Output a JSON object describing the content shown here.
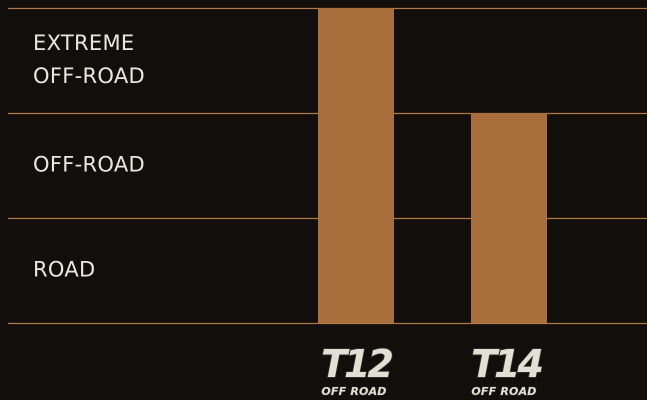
{
  "colors": {
    "background": "#120e0b",
    "bar": "#a86f3d",
    "grid": "#b07a46",
    "label_text": "#ece6de",
    "logo_fill": "#e2dfd5",
    "logo_outline": "#3b3a30"
  },
  "chart_data": {
    "type": "bar",
    "title": "",
    "xlabel": "",
    "ylabel": "",
    "levels": [
      "ROAD",
      "OFF-ROAD",
      "EXTREME OFF-ROAD"
    ],
    "level_labels": [
      [
        "ROAD"
      ],
      [
        "OFF-ROAD"
      ],
      [
        "EXTREME",
        "OFF-ROAD"
      ]
    ],
    "ylim": [
      0,
      3
    ],
    "grid": true,
    "legend": "none",
    "categories": [
      "T12 OFF ROAD",
      "T14 OFF ROAD"
    ],
    "category_logos": [
      {
        "main": "T12",
        "sub": "OFF ROAD"
      },
      {
        "main": "T14",
        "sub": "OFF ROAD"
      }
    ],
    "values": [
      3,
      2
    ],
    "value_meaning": [
      "EXTREME OFF-ROAD",
      "OFF-ROAD"
    ]
  }
}
